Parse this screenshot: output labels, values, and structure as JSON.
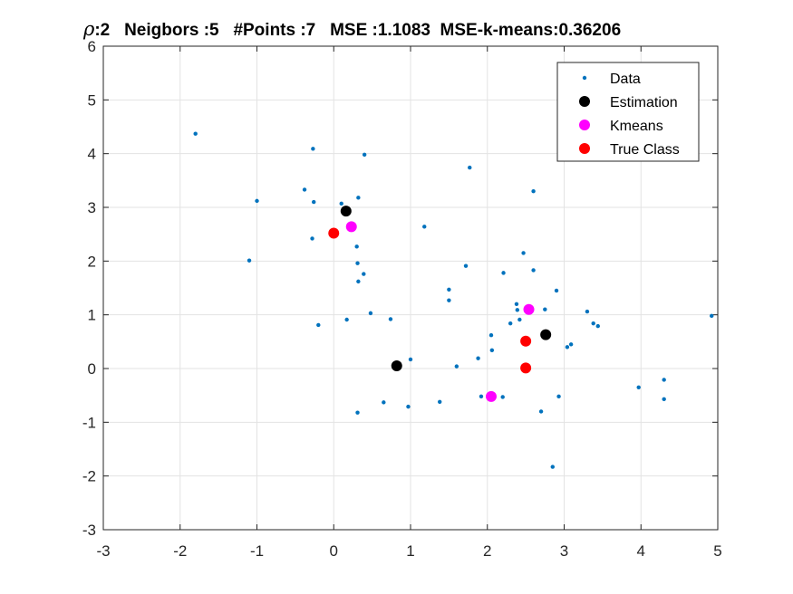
{
  "chart_data": {
    "type": "scatter",
    "title": {
      "symbol": "ρ",
      "text": ":2   Neigbors :5   #Points :7   MSE :1.1083  MSE-k-means:0.36206"
    },
    "xlabel": "",
    "ylabel": "",
    "xlim": [
      -3,
      5
    ],
    "ylim": [
      -3,
      6
    ],
    "xticks": [
      "-3",
      "-2",
      "-1",
      "0",
      "1",
      "2",
      "3",
      "4",
      "5"
    ],
    "yticks": [
      "-3",
      "-2",
      "-1",
      "0",
      "1",
      "2",
      "3",
      "4",
      "5",
      "6"
    ],
    "grid": true,
    "legend_position": "top-right",
    "series": [
      {
        "name": "Data",
        "color": "#0072BD",
        "marker": "dot",
        "points": [
          [
            -1.8,
            4.37
          ],
          [
            -1.0,
            3.12
          ],
          [
            -1.1,
            2.01
          ],
          [
            -0.38,
            3.33
          ],
          [
            -0.27,
            4.09
          ],
          [
            -0.26,
            3.1
          ],
          [
            -0.28,
            2.42
          ],
          [
            -0.2,
            0.81
          ],
          [
            0.1,
            3.07
          ],
          [
            0.17,
            0.91
          ],
          [
            0.3,
            2.27
          ],
          [
            0.32,
            3.18
          ],
          [
            0.4,
            3.98
          ],
          [
            0.31,
            1.96
          ],
          [
            0.32,
            1.62
          ],
          [
            0.39,
            1.76
          ],
          [
            0.31,
            -0.82
          ],
          [
            0.48,
            1.03
          ],
          [
            0.65,
            -0.63
          ],
          [
            0.74,
            0.92
          ],
          [
            0.97,
            -0.71
          ],
          [
            1.0,
            0.17
          ],
          [
            1.18,
            2.64
          ],
          [
            1.38,
            -0.62
          ],
          [
            1.5,
            1.47
          ],
          [
            1.5,
            1.27
          ],
          [
            1.6,
            0.04
          ],
          [
            1.72,
            1.91
          ],
          [
            1.77,
            3.74
          ],
          [
            1.88,
            0.19
          ],
          [
            1.92,
            -0.52
          ],
          [
            2.05,
            0.62
          ],
          [
            2.06,
            0.34
          ],
          [
            2.2,
            -0.53
          ],
          [
            2.21,
            1.78
          ],
          [
            2.3,
            0.84
          ],
          [
            2.38,
            1.2
          ],
          [
            2.39,
            1.09
          ],
          [
            2.42,
            0.91
          ],
          [
            2.47,
            2.15
          ],
          [
            2.5,
            -0.04
          ],
          [
            2.57,
            1.12
          ],
          [
            2.6,
            3.3
          ],
          [
            2.6,
            1.83
          ],
          [
            2.7,
            -0.8
          ],
          [
            2.75,
            1.1
          ],
          [
            2.85,
            -1.83
          ],
          [
            2.9,
            1.45
          ],
          [
            2.93,
            -0.52
          ],
          [
            3.04,
            0.4
          ],
          [
            3.09,
            0.45
          ],
          [
            3.3,
            1.06
          ],
          [
            3.38,
            0.84
          ],
          [
            3.44,
            0.79
          ],
          [
            3.97,
            -0.35
          ],
          [
            4.3,
            -0.21
          ],
          [
            4.3,
            -0.57
          ],
          [
            4.92,
            0.98
          ],
          [
            0.25,
            2.66
          ]
        ]
      },
      {
        "name": "Estimation",
        "color": "#000000",
        "marker": "circle",
        "points": [
          [
            0.16,
            2.93
          ],
          [
            0.82,
            0.05
          ],
          [
            2.76,
            0.63
          ]
        ]
      },
      {
        "name": "Kmeans",
        "color": "#FF00FF",
        "marker": "circle",
        "points": [
          [
            0.23,
            2.64
          ],
          [
            2.54,
            1.1
          ],
          [
            2.05,
            -0.52
          ]
        ]
      },
      {
        "name": "True Class",
        "color": "#FF0000",
        "marker": "circle",
        "points": [
          [
            0.0,
            2.52
          ],
          [
            2.5,
            0.51
          ],
          [
            2.5,
            0.01
          ]
        ]
      }
    ]
  }
}
